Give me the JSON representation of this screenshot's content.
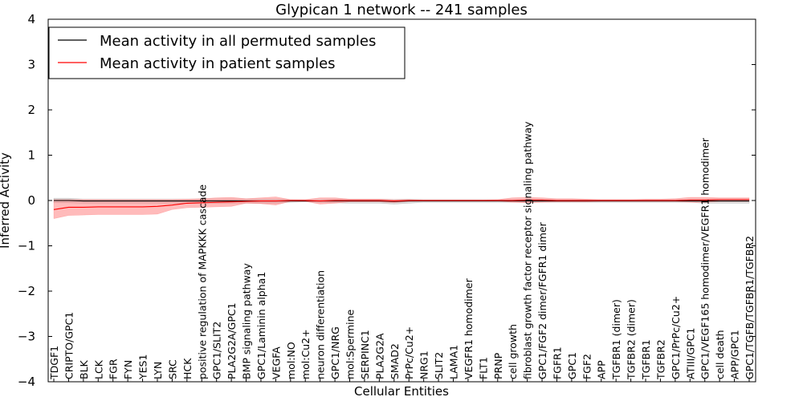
{
  "chart_data": {
    "type": "line",
    "title": "Glypican 1 network -- 241 samples",
    "xlabel": "Cellular Entities",
    "ylabel": "Inferred Activity",
    "ylim": [
      -4,
      4
    ],
    "yticks": [
      "−4",
      "−3",
      "−2",
      "−1",
      "0",
      "1",
      "2",
      "3",
      "4"
    ],
    "grid": false,
    "legend_position": "top-left",
    "categories": [
      "TDGF1",
      "CRIPTO/GPC1",
      "BLK",
      "LCK",
      "FGR",
      "FYN",
      "YES1",
      "LYN",
      "SRC",
      "HCK",
      "positive regulation of MAPKKK cascade",
      "GPC1/SLIT2",
      "PLA2G2A/GPC1",
      "BMP signaling pathway",
      "GPC1/Laminin alpha1",
      "VEGFA",
      "mol:NO",
      "mol:Cu2+",
      "neuron differentiation",
      "GPC1/NRG",
      "mol:Spermine",
      "SERPINC1",
      "PLA2G2A",
      "SMAD2",
      "PrPc/Cu2+",
      "NRG1",
      "SLIT2",
      "LAMA1",
      "VEGFR1 homodimer",
      "FLT1",
      "PRNP",
      "cell growth",
      "fibroblast growth factor receptor signaling pathway",
      "GPC1/FGF2 dimer/FGFR1 dimer",
      "FGFR1",
      "GPC1",
      "FGF2",
      "APP",
      "TGFBR1 (dimer)",
      "TGFBR2 (dimer)",
      "TGFBR1",
      "TGFBR2",
      "GPC1/PrPc/Cu2+",
      "ATIII/GPC1",
      "GPC1/VEGF165 homodimer/VEGFR1 homodimer",
      "cell death",
      "APP/GPC1",
      "GPC1/TGFB/TGFBR1/TGFBR2"
    ],
    "series": [
      {
        "name": "Mean activity in all permuted samples",
        "color": "#000000",
        "band_color": "#999999",
        "values": [
          0.0,
          0.0,
          -0.01,
          -0.01,
          -0.01,
          -0.01,
          -0.01,
          -0.01,
          -0.01,
          -0.01,
          -0.01,
          -0.01,
          -0.01,
          -0.01,
          -0.01,
          -0.01,
          -0.01,
          -0.01,
          -0.01,
          -0.01,
          -0.01,
          -0.01,
          -0.01,
          -0.02,
          -0.01,
          -0.01,
          -0.01,
          -0.01,
          -0.01,
          -0.01,
          -0.01,
          -0.01,
          -0.01,
          -0.01,
          -0.01,
          -0.01,
          -0.01,
          -0.01,
          -0.01,
          -0.01,
          -0.01,
          -0.01,
          -0.01,
          -0.01,
          -0.01,
          -0.01,
          -0.01,
          -0.01
        ],
        "lower": [
          -0.05,
          -0.05,
          -0.06,
          -0.06,
          -0.06,
          -0.06,
          -0.06,
          -0.06,
          -0.06,
          -0.06,
          -0.06,
          -0.06,
          -0.06,
          -0.06,
          -0.06,
          -0.06,
          -0.04,
          -0.03,
          -0.04,
          -0.05,
          -0.06,
          -0.06,
          -0.06,
          -0.08,
          -0.06,
          -0.04,
          -0.04,
          -0.04,
          -0.04,
          -0.04,
          -0.04,
          -0.04,
          -0.04,
          -0.04,
          -0.04,
          -0.04,
          -0.04,
          -0.04,
          -0.04,
          -0.04,
          -0.04,
          -0.04,
          -0.04,
          -0.04,
          -0.06,
          -0.06,
          -0.06,
          -0.06
        ],
        "upper": [
          0.05,
          0.05,
          0.03,
          0.03,
          0.03,
          0.03,
          0.03,
          0.03,
          0.03,
          0.03,
          0.03,
          0.03,
          0.03,
          0.03,
          0.03,
          0.03,
          0.02,
          0.01,
          0.02,
          0.03,
          0.03,
          0.03,
          0.03,
          0.02,
          0.03,
          0.02,
          0.02,
          0.02,
          0.02,
          0.02,
          0.02,
          0.02,
          0.02,
          0.02,
          0.02,
          0.02,
          0.02,
          0.02,
          0.02,
          0.02,
          0.02,
          0.02,
          0.02,
          0.02,
          0.02,
          0.02,
          0.02,
          0.02
        ]
      },
      {
        "name": "Mean activity in patient samples",
        "color": "#ff0000",
        "band_color": "#ff7777",
        "values": [
          -0.2,
          -0.15,
          -0.15,
          -0.14,
          -0.14,
          -0.14,
          -0.14,
          -0.13,
          -0.1,
          -0.06,
          -0.05,
          -0.04,
          -0.03,
          -0.02,
          -0.01,
          -0.01,
          0.0,
          0.0,
          -0.01,
          0.0,
          0.0,
          0.0,
          0.0,
          -0.01,
          0.0,
          0.0,
          0.0,
          0.0,
          0.0,
          0.0,
          0.0,
          0.0,
          0.01,
          0.01,
          0.0,
          0.0,
          0.0,
          0.0,
          0.0,
          0.0,
          0.0,
          0.0,
          0.0,
          0.01,
          0.01,
          0.02,
          0.02,
          0.02
        ],
        "lower": [
          -0.4,
          -0.33,
          -0.32,
          -0.31,
          -0.31,
          -0.31,
          -0.31,
          -0.3,
          -0.2,
          -0.16,
          -0.15,
          -0.14,
          -0.13,
          -0.06,
          -0.07,
          -0.1,
          -0.02,
          -0.02,
          -0.08,
          -0.06,
          -0.03,
          -0.03,
          -0.03,
          -0.05,
          -0.02,
          -0.01,
          -0.01,
          -0.01,
          -0.01,
          -0.01,
          -0.01,
          -0.04,
          -0.05,
          -0.04,
          -0.03,
          -0.03,
          -0.03,
          -0.02,
          -0.02,
          -0.02,
          -0.02,
          -0.02,
          -0.02,
          -0.04,
          -0.04,
          -0.02,
          -0.02,
          -0.02
        ],
        "upper": [
          0.02,
          0.02,
          0.02,
          0.02,
          0.02,
          0.02,
          0.02,
          0.02,
          0.02,
          0.03,
          0.04,
          0.06,
          0.07,
          0.04,
          0.06,
          0.08,
          0.02,
          0.02,
          0.06,
          0.06,
          0.03,
          0.03,
          0.03,
          0.02,
          0.02,
          0.01,
          0.01,
          0.01,
          0.01,
          0.01,
          0.02,
          0.06,
          0.07,
          0.06,
          0.04,
          0.04,
          0.03,
          0.02,
          0.02,
          0.02,
          0.03,
          0.03,
          0.04,
          0.07,
          0.07,
          0.06,
          0.06,
          0.06
        ]
      }
    ]
  }
}
